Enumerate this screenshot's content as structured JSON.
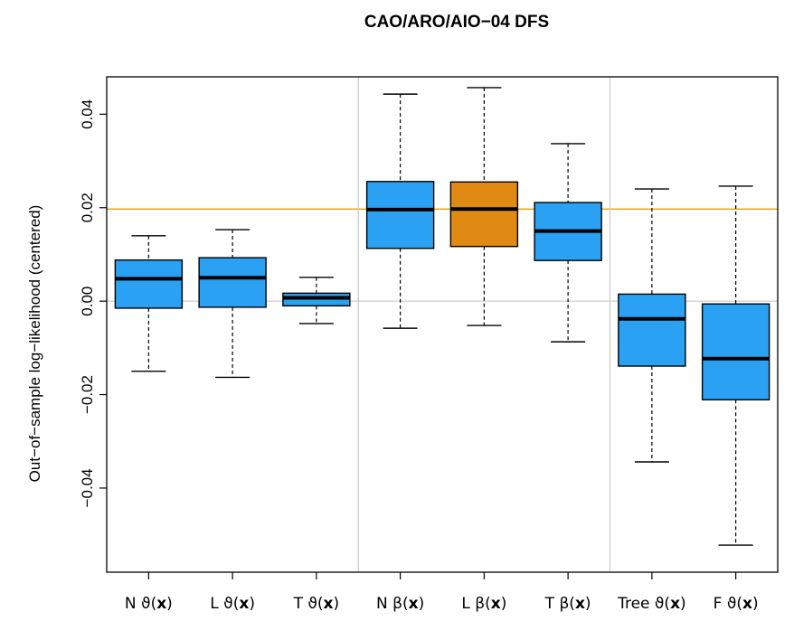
{
  "chart_data": {
    "type": "boxplot",
    "title": "CAO/ARO/AIO−04 DFS",
    "ylabel": "Out−of−sample log−likelihood (centered)",
    "xlabel": "",
    "ylim": [
      -0.058,
      0.048
    ],
    "yticks": [
      {
        "value": -0.04,
        "label": "−0.04"
      },
      {
        "value": -0.02,
        "label": "−0.02"
      },
      {
        "value": 0.0,
        "label": "0.00"
      },
      {
        "value": 0.02,
        "label": "0.02"
      },
      {
        "value": 0.04,
        "label": "0.04"
      }
    ],
    "reference_lines": [
      {
        "value": 0.0,
        "color": "#cccccc"
      },
      {
        "value": 0.0197,
        "color": "#e69f00"
      }
    ],
    "group_separators_after": [
      3,
      6
    ],
    "categories": [
      {
        "prefix": "N ",
        "symbol": "ϑ",
        "arg": "x"
      },
      {
        "prefix": "L ",
        "symbol": "ϑ",
        "arg": "x"
      },
      {
        "prefix": "T ",
        "symbol": "ϑ",
        "arg": "x"
      },
      {
        "prefix": "N ",
        "symbol": "β",
        "arg": "x"
      },
      {
        "prefix": "L ",
        "symbol": "β",
        "arg": "x"
      },
      {
        "prefix": "T ",
        "symbol": "β",
        "arg": "x"
      },
      {
        "prefix": "Tree ",
        "symbol": "ϑ",
        "arg": "x"
      },
      {
        "prefix": "F ",
        "symbol": "ϑ",
        "arg": "x"
      }
    ],
    "boxes": [
      {
        "min": -0.015,
        "q1": -0.0015,
        "median": 0.0048,
        "q3": 0.0088,
        "max": 0.014,
        "color": "#2aa1f2"
      },
      {
        "min": -0.0163,
        "q1": -0.0013,
        "median": 0.005,
        "q3": 0.0093,
        "max": 0.0153,
        "color": "#2aa1f2"
      },
      {
        "min": -0.0048,
        "q1": -0.001,
        "median": 0.0007,
        "q3": 0.0017,
        "max": 0.0051,
        "color": "#2aa1f2"
      },
      {
        "min": -0.0058,
        "q1": 0.0113,
        "median": 0.0196,
        "q3": 0.0256,
        "max": 0.0443,
        "color": "#2aa1f2"
      },
      {
        "min": -0.0052,
        "q1": 0.0117,
        "median": 0.0197,
        "q3": 0.0255,
        "max": 0.0457,
        "color": "#e08a14"
      },
      {
        "min": -0.0087,
        "q1": 0.0087,
        "median": 0.015,
        "q3": 0.0211,
        "max": 0.0337,
        "color": "#2aa1f2"
      },
      {
        "min": -0.0344,
        "q1": -0.0139,
        "median": -0.0038,
        "q3": 0.0015,
        "max": 0.024,
        "color": "#2aa1f2"
      },
      {
        "min": -0.0522,
        "q1": -0.0211,
        "median": -0.0123,
        "q3": -0.0006,
        "max": 0.0246,
        "color": "#2aa1f2"
      }
    ]
  }
}
